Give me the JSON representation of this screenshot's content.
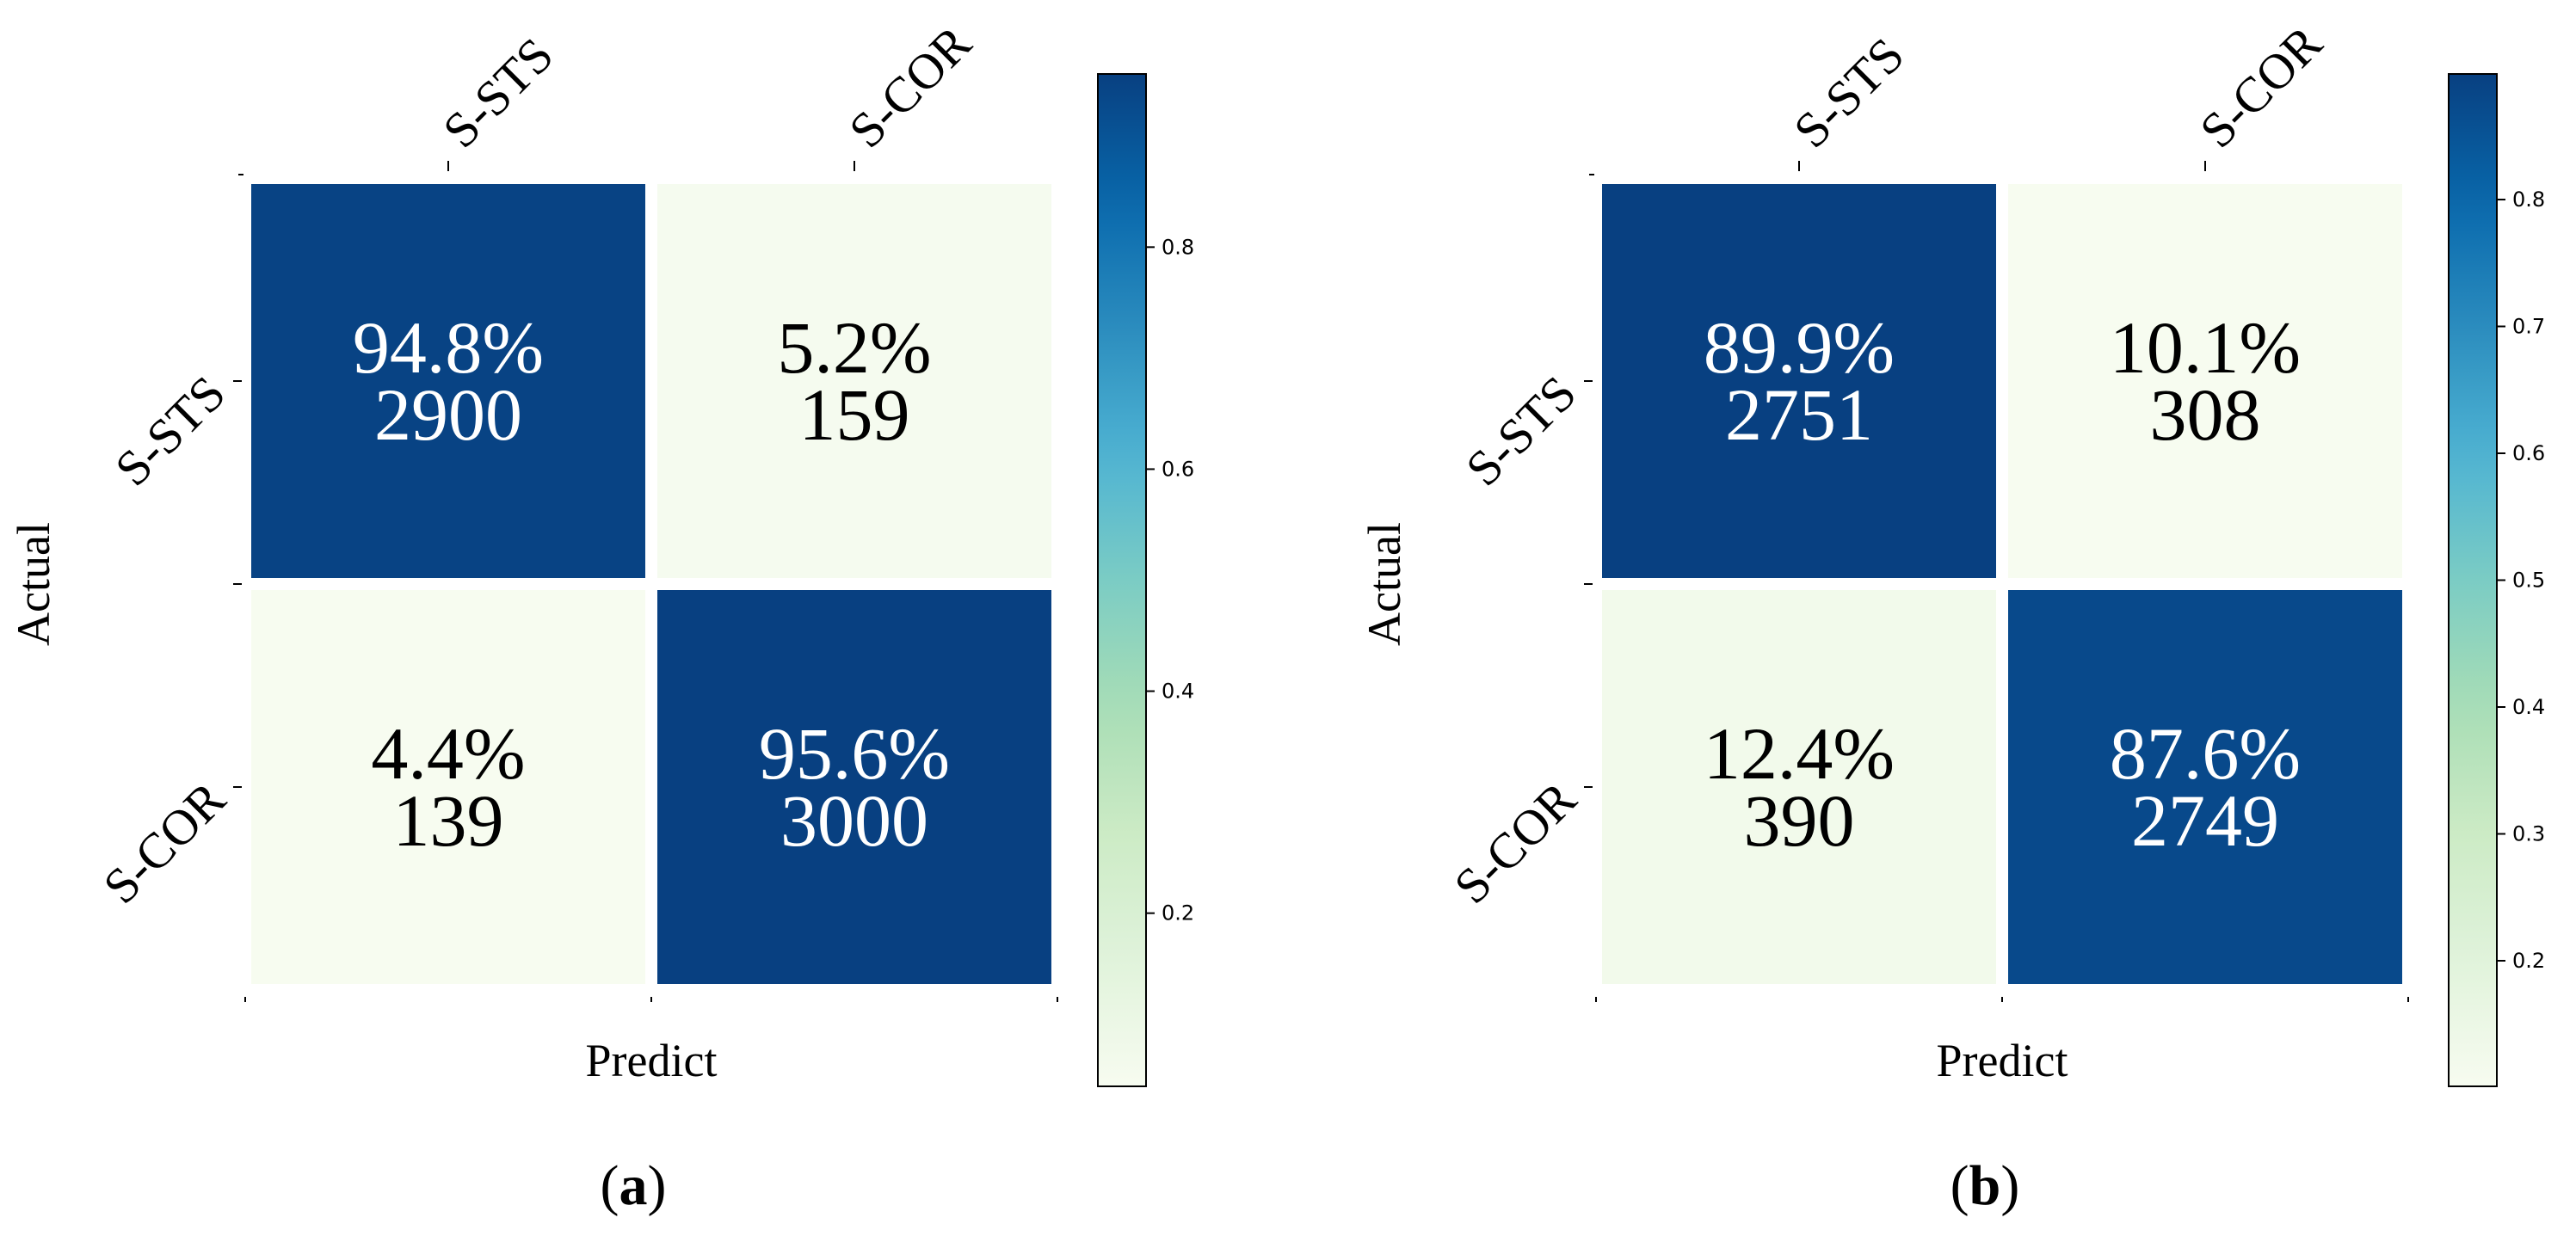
{
  "colormap": {
    "stops": [
      "#f7fcf0",
      "#e0f3db",
      "#ccebc5",
      "#a8ddb5",
      "#7bccc4",
      "#4eb3d3",
      "#2b8cbe",
      "#0868ac",
      "#084081"
    ],
    "grid_color": "#ffffff"
  },
  "chart_data": [
    {
      "type": "heatmap",
      "panel_label": "a",
      "xlabel": "Predict",
      "ylabel": "Actual",
      "x_categories": [
        "S-STS",
        "S-COR"
      ],
      "y_categories": [
        "S-STS",
        "S-COR"
      ],
      "values": [
        [
          0.948,
          0.052
        ],
        [
          0.044,
          0.956
        ]
      ],
      "counts": [
        [
          2900,
          159
        ],
        [
          139,
          3000
        ]
      ],
      "cell_text": [
        [
          "94.8%",
          "5.2%"
        ],
        [
          "4.4%",
          "95.6%"
        ]
      ],
      "colorbar": {
        "min": 0.044,
        "max": 0.956,
        "ticks": [
          0.2,
          0.4,
          0.6,
          0.8
        ],
        "tick_labels": [
          "0.2",
          "0.4",
          "0.6",
          "0.8"
        ]
      }
    },
    {
      "type": "heatmap",
      "panel_label": "b",
      "xlabel": "Predict",
      "ylabel": "Actual",
      "x_categories": [
        "S-STS",
        "S-COR"
      ],
      "y_categories": [
        "S-STS",
        "S-COR"
      ],
      "values": [
        [
          0.899,
          0.101
        ],
        [
          0.124,
          0.876
        ]
      ],
      "counts": [
        [
          2751,
          308
        ],
        [
          390,
          2749
        ]
      ],
      "cell_text": [
        [
          "89.9%",
          "10.1%"
        ],
        [
          "12.4%",
          "87.6%"
        ]
      ],
      "colorbar": {
        "min": 0.101,
        "max": 0.899,
        "ticks": [
          0.2,
          0.3,
          0.4,
          0.5,
          0.6,
          0.7,
          0.8
        ],
        "tick_labels": [
          "0.2",
          "0.3",
          "0.4",
          "0.5",
          "0.6",
          "0.7",
          "0.8"
        ]
      }
    }
  ]
}
